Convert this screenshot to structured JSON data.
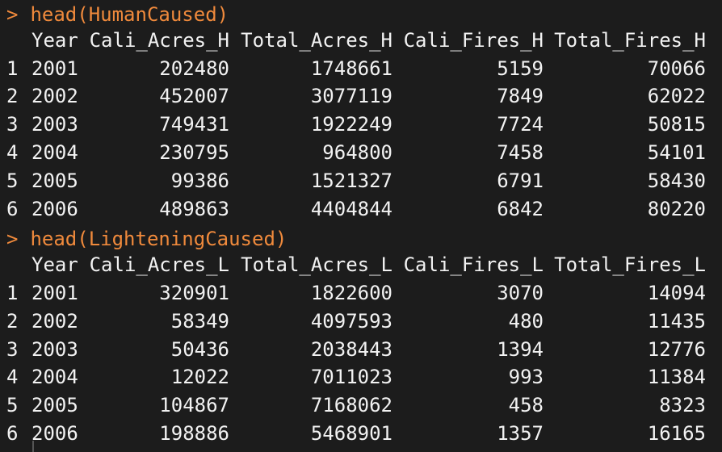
{
  "console": {
    "prompt_symbol": ">",
    "blocks": [
      {
        "command": "head(HumanCaused)",
        "headers": [
          "Year",
          "Cali_Acres_H",
          "Total_Acres_H",
          "Cali_Fires_H",
          "Total_Fires_H"
        ],
        "rows": [
          [
            "1",
            "2001",
            "202480",
            "1748661",
            "5159",
            "70066"
          ],
          [
            "2",
            "2002",
            "452007",
            "3077119",
            "7849",
            "62022"
          ],
          [
            "3",
            "2003",
            "749431",
            "1922249",
            "7724",
            "50815"
          ],
          [
            "4",
            "2004",
            "230795",
            "964800",
            "7458",
            "54101"
          ],
          [
            "5",
            "2005",
            "99386",
            "1521327",
            "6791",
            "58430"
          ],
          [
            "6",
            "2006",
            "489863",
            "4404844",
            "6842",
            "80220"
          ]
        ]
      },
      {
        "command": "head(LighteningCaused)",
        "headers": [
          "Year",
          "Cali_Acres_L",
          "Total_Acres_L",
          "Cali_Fires_L",
          "Total_Fires_L"
        ],
        "rows": [
          [
            "1",
            "2001",
            "320901",
            "1822600",
            "3070",
            "14094"
          ],
          [
            "2",
            "2002",
            "58349",
            "4097593",
            "480",
            "11435"
          ],
          [
            "3",
            "2003",
            "50436",
            "2038443",
            "1394",
            "12776"
          ],
          [
            "4",
            "2004",
            "12022",
            "7011023",
            "993",
            "11384"
          ],
          [
            "5",
            "2005",
            "104867",
            "7168062",
            "458",
            "8323"
          ],
          [
            "6",
            "2006",
            "198886",
            "5468901",
            "1357",
            "16165"
          ]
        ]
      }
    ]
  },
  "colors": {
    "background": "#1c1c1c",
    "text": "#f2f2f2",
    "command": "#f08a3c"
  }
}
